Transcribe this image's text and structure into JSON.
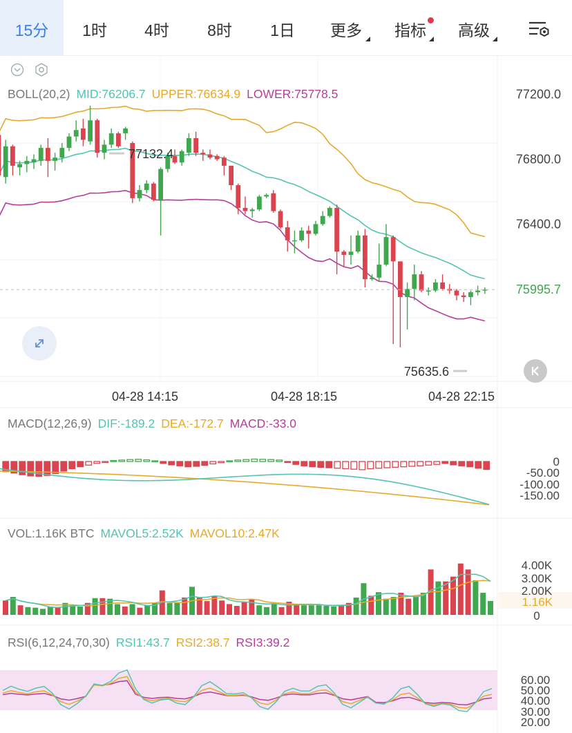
{
  "tabs": {
    "items": [
      {
        "label": "15分",
        "active": true
      },
      {
        "label": "1时"
      },
      {
        "label": "4时"
      },
      {
        "label": "8时"
      },
      {
        "label": "1日"
      },
      {
        "label": "更多",
        "caret": true
      },
      {
        "label": "指标",
        "caret": true,
        "dot": true
      },
      {
        "label": "高级",
        "caret": true
      }
    ],
    "settings_icon": "chart-settings-icon"
  },
  "colors": {
    "up": "#3fa84f",
    "down": "#d9444f",
    "mid": "#52c4b1",
    "upper": "#e8a92a",
    "lower": "#b83d9a",
    "accent": "#3b7ee8",
    "rsiband": "#f6e1f4"
  },
  "boll": {
    "name": "BOLL(20,2)",
    "mid": "MID:76206.7",
    "upper": "UPPER:76634.9",
    "lower": "LOWER:75778.5"
  },
  "macd": {
    "name": "MACD(12,26,9)",
    "dif": "DIF:-189.2",
    "dea": "DEA:-172.7",
    "macd": "MACD:-33.0"
  },
  "vol": {
    "name": "VOL:1.16K BTC",
    "mavol5": "MAVOL5:2.52K",
    "mavol10": "MAVOL10:2.47K"
  },
  "rsi": {
    "name": "RSI(6,12,24,70,30)",
    "rsi1": "RSI1:43.7",
    "rsi2": "RSI2:38.7",
    "rsi3": "RSI3:39.2"
  },
  "chart_data": [
    {
      "type": "candlestick",
      "title": "BOLL(20,2)",
      "ylim": [
        75430,
        77420
      ],
      "y_ticks": [
        77200.0,
        76800.0,
        76400.0
      ],
      "current_price": "75995.7",
      "high_label": "77132.4",
      "low_label": "75635.6",
      "x_tick_labels": [
        "04-28 14:15",
        "04-28 18:15",
        "04-28 22:15"
      ],
      "candles": [
        [
          76950,
          76700,
          76760,
          76620
        ],
        [
          76690,
          76880,
          76920,
          76650
        ],
        [
          76880,
          76760,
          76890,
          76700
        ],
        [
          76750,
          76770,
          76790,
          76700
        ],
        [
          76770,
          76790,
          76820,
          76720
        ],
        [
          76780,
          76800,
          76830,
          76740
        ],
        [
          76790,
          76870,
          76890,
          76760
        ],
        [
          76870,
          76790,
          76930,
          76690
        ],
        [
          76790,
          76810,
          76840,
          76730
        ],
        [
          76810,
          76870,
          76900,
          76780
        ],
        [
          76870,
          76940,
          76960,
          76850
        ],
        [
          76940,
          76980,
          77040,
          76910
        ],
        [
          76990,
          76920,
          77050,
          76880
        ],
        [
          76910,
          77040,
          77130,
          76890
        ],
        [
          77040,
          76840,
          77050,
          76810
        ],
        [
          76840,
          76890,
          76920,
          76800
        ],
        [
          76890,
          76960,
          76990,
          76870
        ],
        [
          76960,
          76880,
          76970,
          76870
        ],
        [
          76960,
          76990,
          77000,
          76920
        ],
        [
          76900,
          76560,
          76910,
          76530
        ],
        [
          76560,
          76610,
          76640,
          76540
        ],
        [
          76610,
          76650,
          76670,
          76590
        ],
        [
          76650,
          76550,
          76660,
          76540
        ],
        [
          76550,
          76740,
          76750,
          76330
        ],
        [
          76740,
          76820,
          76840,
          76720
        ],
        [
          76820,
          76780,
          76860,
          76770
        ],
        [
          76780,
          76850,
          76860,
          76760
        ],
        [
          76840,
          76930,
          76960,
          76820
        ],
        [
          76930,
          76840,
          76970,
          76820
        ],
        [
          76840,
          76830,
          76860,
          76790
        ],
        [
          76830,
          76810,
          76860,
          76800
        ],
        [
          76820,
          76800,
          76830,
          76790
        ],
        [
          76810,
          76760,
          76820,
          76700
        ],
        [
          76760,
          76640,
          76760,
          76610
        ],
        [
          76640,
          76500,
          76650,
          76460
        ],
        [
          76500,
          76480,
          76570,
          76460
        ],
        [
          76480,
          76490,
          76500,
          76440
        ],
        [
          76490,
          76570,
          76580,
          76480
        ],
        [
          76570,
          76580,
          76590,
          76560
        ],
        [
          76590,
          76480,
          76610,
          76470
        ],
        [
          76480,
          76380,
          76490,
          76370
        ],
        [
          76380,
          76300,
          76420,
          76230
        ],
        [
          76300,
          76300,
          76360,
          76220
        ],
        [
          76300,
          76360,
          76380,
          76290
        ],
        [
          76360,
          76340,
          76390,
          76250
        ],
        [
          76340,
          76400,
          76420,
          76330
        ],
        [
          76400,
          76450,
          76480,
          76390
        ],
        [
          76450,
          76500,
          76510,
          76440
        ],
        [
          76500,
          76230,
          76520,
          76090
        ],
        [
          76230,
          76210,
          76240,
          76140
        ],
        [
          76210,
          76230,
          76330,
          76150
        ],
        [
          76230,
          76330,
          76360,
          76220
        ],
        [
          76330,
          76060,
          76370,
          76010
        ],
        [
          76060,
          76070,
          76090,
          76050
        ],
        [
          76070,
          76150,
          76280,
          76050
        ],
        [
          76150,
          76320,
          76400,
          76140
        ],
        [
          76320,
          76170,
          76330,
          75660
        ],
        [
          76170,
          75950,
          76060,
          75640
        ],
        [
          75950,
          76000,
          76040,
          75750
        ],
        [
          76000,
          76090,
          76150,
          75930
        ],
        [
          76090,
          75990,
          76110,
          75980
        ],
        [
          75990,
          75990,
          76010,
          75960
        ],
        [
          75990,
          76040,
          76060,
          75980
        ],
        [
          76040,
          76000,
          76090,
          75990
        ],
        [
          76000,
          75990,
          76030,
          75970
        ],
        [
          75990,
          75960,
          76000,
          75930
        ],
        [
          75960,
          75950,
          75980,
          75920
        ],
        [
          75950,
          75980,
          75990,
          75900
        ],
        [
          75980,
          75990,
          76020,
          75960
        ],
        [
          75990,
          75996,
          76010,
          75970
        ]
      ],
      "series_note": "MID / UPPER / LOWER lines"
    },
    {
      "type": "bar",
      "title": "MACD(12,26,9)",
      "y_ticks": [
        "0",
        "-50.00",
        "-100.00",
        "-150.00"
      ],
      "ylim": [
        -180,
        20
      ],
      "hist": [
        -42,
        -48,
        -55,
        -60,
        -62,
        -58,
        -50,
        -40,
        -30,
        -22,
        -15,
        -8,
        -2,
        4,
        6,
        8,
        9,
        7,
        3,
        -8,
        -14,
        -18,
        -22,
        -20,
        -16,
        -10,
        -5,
        3,
        6,
        8,
        10,
        9,
        8,
        6,
        -2,
        -12,
        -18,
        -22,
        -24,
        -26,
        -28,
        -30,
        -32,
        -34,
        -30,
        -28,
        -26,
        -24,
        -22,
        -20,
        -18,
        -15,
        -12,
        -8,
        -14,
        -18,
        -22,
        -28,
        -33
      ]
    },
    {
      "type": "bar",
      "title": "VOL",
      "y_ticks": [
        "4.00K",
        "3.00K",
        "2.00K",
        "1.16K",
        "0"
      ],
      "ylim": [
        0,
        4800
      ],
      "vol": [
        1200,
        1500,
        800,
        650,
        600,
        500,
        700,
        650,
        1000,
        850,
        700,
        1000,
        1400,
        1400,
        1350,
        900,
        700,
        900,
        600,
        800,
        1000,
        2050,
        1000,
        1000,
        1450,
        2350,
        1450,
        1150,
        1550,
        1200,
        900,
        750,
        1050,
        1300,
        800,
        650,
        900,
        650,
        1100,
        850,
        800,
        800,
        800,
        750,
        700,
        800,
        1000,
        1450,
        2650,
        1600,
        1900,
        1350,
        1500,
        1850,
        1350,
        1500,
        1850,
        3800,
        2800,
        2800,
        3200,
        4300,
        3800,
        2900,
        1850,
        1160
      ]
    },
    {
      "type": "line",
      "title": "RSI(6,12,24,70,30)",
      "y_ticks": [
        "60.00",
        "50.00",
        "40.00",
        "30.00",
        "20.00"
      ],
      "ylim": [
        14,
        70
      ]
    }
  ]
}
